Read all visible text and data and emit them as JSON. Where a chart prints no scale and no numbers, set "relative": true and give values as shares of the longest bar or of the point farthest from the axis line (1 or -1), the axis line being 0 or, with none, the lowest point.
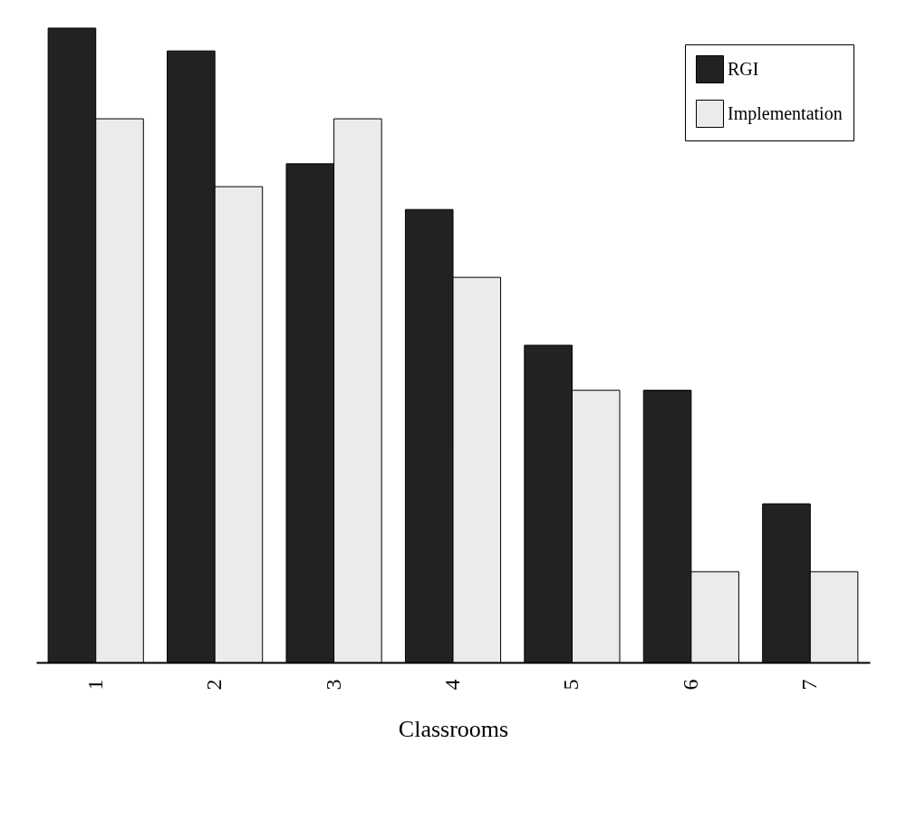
{
  "chart_data": {
    "type": "bar",
    "xlabel": "Classrooms",
    "relative": true,
    "legend": "top right",
    "categories": [
      "1",
      "2",
      "3",
      "4",
      "5",
      "6",
      "7"
    ],
    "series": [
      {
        "name": "RGI",
        "color": "#222222",
        "values": [
          1,
          0.964,
          0.786,
          0.714,
          0.5,
          0.429,
          0.25
        ]
      },
      {
        "name": "Implementation",
        "color": "#ebebeb",
        "values": [
          0.857,
          0.75,
          0.857,
          0.607,
          0.429,
          0.143,
          0.143
        ]
      }
    ]
  }
}
